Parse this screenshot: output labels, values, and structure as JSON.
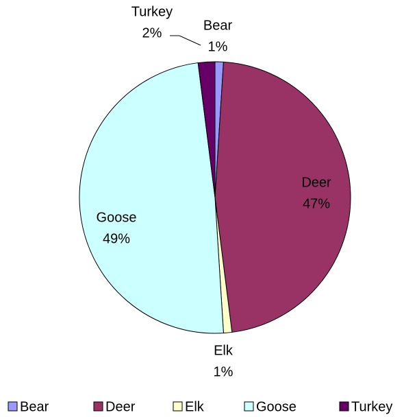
{
  "chart_data": {
    "type": "pie",
    "categories": [
      "Bear",
      "Deer",
      "Elk",
      "Goose",
      "Turkey"
    ],
    "values": [
      1,
      47,
      1,
      49,
      2
    ],
    "value_labels": [
      "1%",
      "47%",
      "1%",
      "49%",
      "2%"
    ],
    "colors": [
      "#9999ff",
      "#993366",
      "#ffffcc",
      "#ccffff",
      "#660066"
    ],
    "legend": "bottom"
  }
}
